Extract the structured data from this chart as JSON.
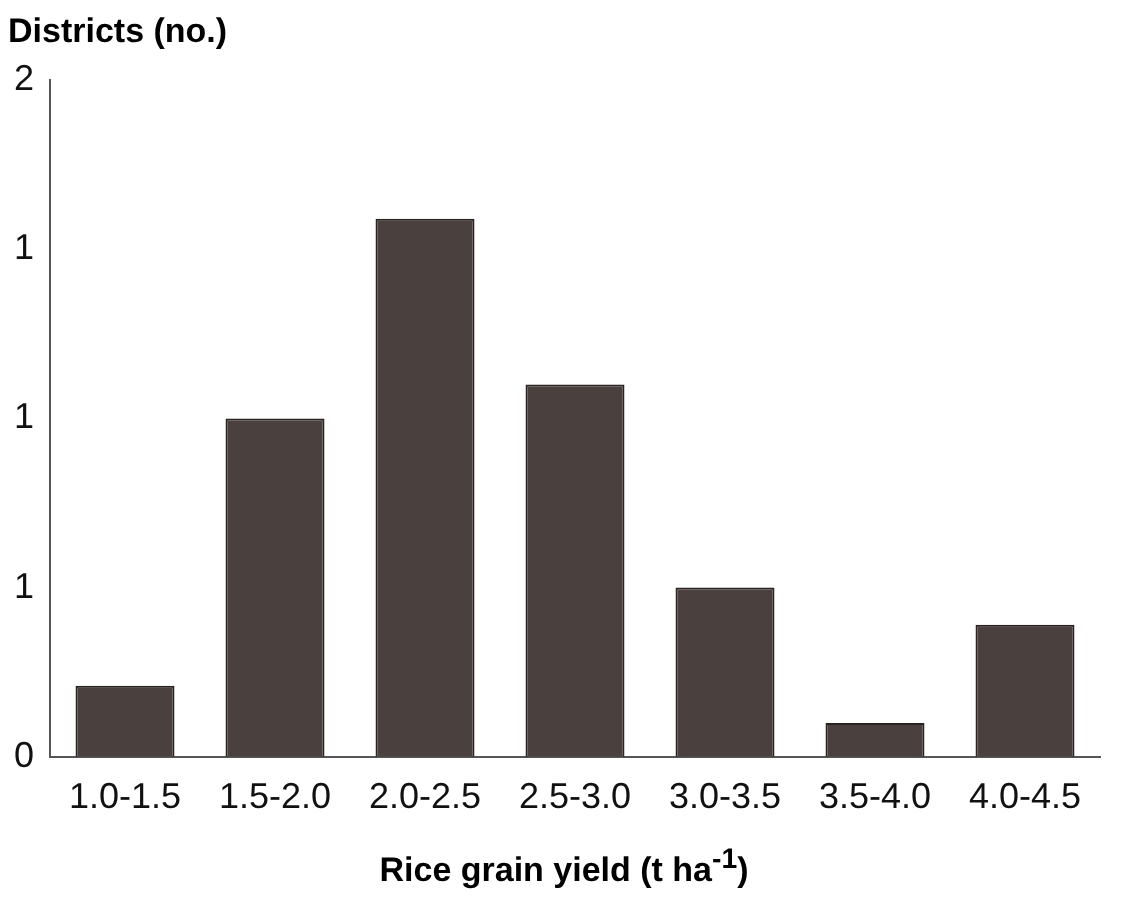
{
  "chart_data": {
    "type": "bar",
    "xlabel": "Rice grain yield (t ha$^{-1}$)",
    "ylabel": "Districts (no.)",
    "categories": [
      "1.0-1.5",
      "1.5-2.0",
      "2.0-2.5",
      "2.5-3.0",
      "3.0-3.5",
      "3.5-4.0",
      "4.0-4.5"
    ],
    "values": [
      0.21,
      1.0,
      1.59,
      1.1,
      0.5,
      0.1,
      0.39
    ],
    "color": "#4a403d",
    "ylim": [
      0,
      2
    ],
    "yticks": [
      0,
      {
        "value": 0.5,
        "label": "1"
      },
      {
        "value": 1,
        "label": "1"
      },
      {
        "value": 1.5,
        "label": "1"
      },
      2
    ],
    "grid": false,
    "legend": false
  }
}
